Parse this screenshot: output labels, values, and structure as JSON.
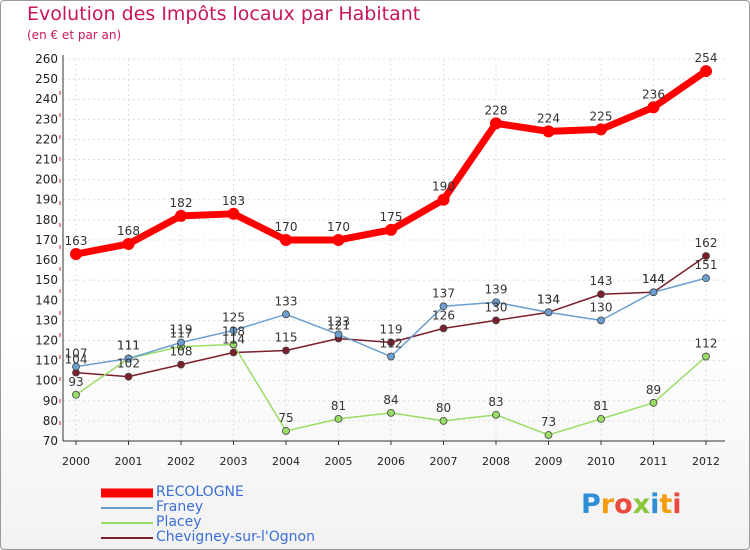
{
  "chart_data": {
    "type": "line",
    "title": "Evolution des Impôts locaux par Habitant",
    "subtitle": "(en € et par an)",
    "x": [
      "2000",
      "2001",
      "2002",
      "2003",
      "2004",
      "2005",
      "2006",
      "2007",
      "2008",
      "2009",
      "2010",
      "2011",
      "2012"
    ],
    "ylim": [
      70,
      260
    ],
    "yticks": [
      70,
      80,
      90,
      100,
      110,
      120,
      130,
      140,
      150,
      160,
      170,
      180,
      190,
      200,
      210,
      220,
      230,
      240,
      250,
      260
    ],
    "grid": true,
    "legend_placement": "bottom-left",
    "series": [
      {
        "name": "RECOLOGNE",
        "color": "#ff0000",
        "values": [
          163,
          168,
          182,
          183,
          170,
          170,
          175,
          190,
          228,
          224,
          225,
          236,
          254
        ],
        "labels": [
          "163",
          "168",
          "182",
          "183",
          "170",
          "170",
          "175",
          "190",
          "228",
          "224",
          "225",
          "236",
          "254"
        ]
      },
      {
        "name": "Franey",
        "color": "#6a9fd0",
        "values": [
          107,
          111,
          119,
          125,
          133,
          123,
          112,
          137,
          139,
          134,
          130,
          144,
          151
        ],
        "labels": [
          "107",
          "111",
          "119",
          "125",
          "133",
          "123",
          "112",
          "137",
          "139",
          "134",
          "130",
          "144",
          "151"
        ]
      },
      {
        "name": "Placey",
        "color": "#99dd66",
        "values": [
          93,
          111,
          117,
          118,
          75,
          81,
          84,
          80,
          83,
          73,
          81,
          89,
          112
        ],
        "labels": [
          "93",
          "111",
          "117",
          "118",
          "75",
          "81",
          "84",
          "80",
          "83",
          "73",
          "81",
          "89",
          "112"
        ]
      },
      {
        "name": "Chevigney-sur-l'Ognon",
        "color": "#7a1f2b",
        "values": [
          104,
          102,
          108,
          114,
          115,
          121,
          119,
          126,
          130,
          134,
          143,
          144,
          162
        ],
        "labels": [
          "104",
          "102",
          "108",
          "114",
          "115",
          "121",
          "119",
          "126",
          "130",
          "134",
          "143",
          "144",
          "162"
        ]
      }
    ]
  },
  "brand": {
    "letters": [
      "P",
      "r",
      "o",
      "x",
      "i",
      "t",
      "i"
    ],
    "colors": [
      "#2e8fd6",
      "#f39c12",
      "#e74c3c",
      "#8cc63f",
      "#2e8fd6",
      "#f39c12",
      "#e74c3c"
    ]
  }
}
